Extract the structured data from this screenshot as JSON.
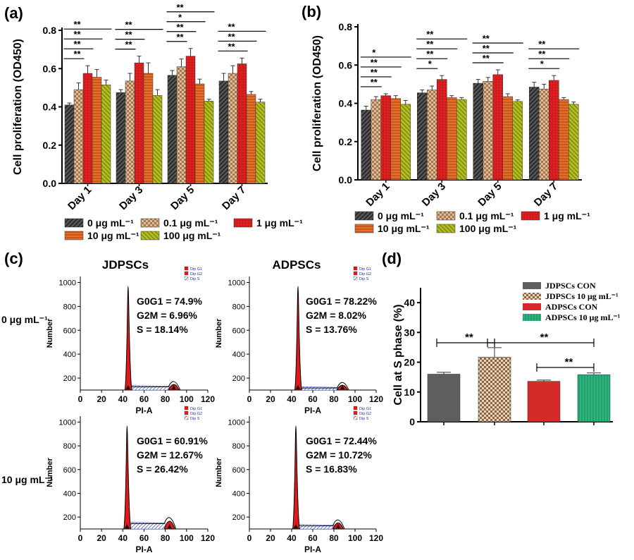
{
  "colors": {
    "c0": "#555555",
    "c01": "#e8b98c",
    "c1": "#d81e1e",
    "c10": "#e46f2b",
    "c100": "#b3bf1f",
    "adcon": "#d62a2a",
    "adtreat": "#2ab57d",
    "peak": "#e01a1a"
  },
  "legend_ab": [
    "0 μg mL⁻¹",
    "0.1 μg mL⁻¹",
    "1 μg mL⁻¹",
    "10 μg mL⁻¹",
    "100 μg mL⁻¹"
  ],
  "chart_data": [
    {
      "panel": "(a)",
      "type": "bar",
      "ylabel": "Cell proliferation (OD450)",
      "ylim": [
        0,
        0.8
      ],
      "yticks": [
        "0.0",
        "0.2",
        "0.4",
        "0.6",
        "0.8"
      ],
      "categories": [
        "Day 1",
        "Day 3",
        "Day 5",
        "Day 7"
      ],
      "series": [
        {
          "name": "0 μg mL⁻¹",
          "values": [
            0.41,
            0.475,
            0.565,
            0.535
          ],
          "err": [
            0.01,
            0.015,
            0.025,
            0.04
          ]
        },
        {
          "name": "0.1 μg mL⁻¹",
          "values": [
            0.49,
            0.535,
            0.61,
            0.575
          ],
          "err": [
            0.035,
            0.04,
            0.04,
            0.04
          ]
        },
        {
          "name": "1 μg mL⁻¹",
          "values": [
            0.575,
            0.63,
            0.665,
            0.625
          ],
          "err": [
            0.04,
            0.035,
            0.04,
            0.03
          ]
        },
        {
          "name": "10 μg mL⁻¹",
          "values": [
            0.555,
            0.575,
            0.52,
            0.465
          ],
          "err": [
            0.04,
            0.055,
            0.025,
            0.015
          ]
        },
        {
          "name": "100 μg mL⁻¹",
          "values": [
            0.515,
            0.46,
            0.43,
            0.425
          ],
          "err": [
            0.025,
            0.03,
            0.01,
            0.015
          ]
        }
      ],
      "significance": [
        [
          [
            "**",
            0,
            1
          ],
          [
            "**",
            0,
            2
          ],
          [
            "**",
            0,
            3
          ],
          [
            "**",
            0,
            4
          ]
        ],
        [
          [
            "**",
            0,
            1
          ],
          [
            "**",
            0,
            2
          ],
          [
            "**",
            0,
            4
          ]
        ],
        [
          [
            "**",
            0,
            1
          ],
          [
            "**",
            0,
            2
          ],
          [
            "*",
            0,
            3
          ],
          [
            "**",
            0,
            4
          ]
        ],
        [
          [
            "**",
            0,
            2
          ],
          [
            "**",
            0,
            3
          ],
          [
            "**",
            0,
            4
          ]
        ]
      ]
    },
    {
      "panel": "(b)",
      "type": "bar",
      "ylabel": "Cell proliferation (OD450)",
      "ylim": [
        0,
        0.8
      ],
      "yticks": [
        "0.0",
        "0.2",
        "0.4",
        "0.6",
        "0.8"
      ],
      "categories": [
        "Day 1",
        "Day 3",
        "Day 5",
        "Day 7"
      ],
      "series": [
        {
          "name": "0 μg mL⁻¹",
          "values": [
            0.365,
            0.455,
            0.505,
            0.485
          ],
          "err": [
            0.02,
            0.015,
            0.02,
            0.025
          ]
        },
        {
          "name": "0.1 μg mL⁻¹",
          "values": [
            0.42,
            0.47,
            0.515,
            0.475
          ],
          "err": [
            0.015,
            0.02,
            0.02,
            0.025
          ]
        },
        {
          "name": "1 μg mL⁻¹",
          "values": [
            0.44,
            0.525,
            0.55,
            0.52
          ],
          "err": [
            0.01,
            0.02,
            0.025,
            0.025
          ]
        },
        {
          "name": "10 μg mL⁻¹",
          "values": [
            0.425,
            0.43,
            0.435,
            0.42
          ],
          "err": [
            0.015,
            0.01,
            0.015,
            0.01
          ]
        },
        {
          "name": "100 μg mL⁻¹",
          "values": [
            0.395,
            0.42,
            0.41,
            0.395
          ],
          "err": [
            0.02,
            0.01,
            0.008,
            0.012
          ]
        }
      ],
      "significance": [
        [
          [
            "**",
            0,
            1
          ],
          [
            "**",
            0,
            2
          ],
          [
            "**",
            0,
            3
          ],
          [
            "*",
            0,
            4
          ]
        ],
        [
          [
            "*",
            0,
            1
          ],
          [
            "**",
            0,
            2
          ],
          [
            "**",
            0,
            3
          ],
          [
            "**",
            0,
            4
          ]
        ],
        [
          [
            "**",
            0,
            2
          ],
          [
            "**",
            0,
            3
          ],
          [
            "**",
            0,
            4
          ]
        ],
        [
          [
            "*",
            0,
            2
          ],
          [
            "**",
            0,
            3
          ],
          [
            "**",
            0,
            4
          ]
        ]
      ]
    },
    {
      "panel": "(c)",
      "type": "area",
      "column_titles": [
        "JDPSCs",
        "ADPSCs"
      ],
      "row_labels": [
        "0 μg mL⁻¹",
        "10 μg mL⁻¹"
      ],
      "xlabel": "PI-A",
      "ylabel": "Number",
      "xticks": [
        "0",
        "20",
        "40",
        "60",
        "80",
        "100",
        "120"
      ],
      "yticks": [
        "200",
        "400",
        "600",
        "800",
        "1000"
      ],
      "mini_legend": [
        "Dip G1",
        "Dip G2",
        "Dip S"
      ],
      "histograms": [
        {
          "row": 0,
          "col": 0,
          "lines": [
            "G0G1 = 74.9%",
            "G2M = 6.96%",
            "S = 18.14%"
          ]
        },
        {
          "row": 0,
          "col": 1,
          "lines": [
            "G0G1 = 78.22%",
            "G2M = 8.02%",
            "S = 13.76%"
          ]
        },
        {
          "row": 1,
          "col": 0,
          "lines": [
            "G0G1 = 60.91%",
            "G2M = 12.67%",
            "S = 26.42%"
          ]
        },
        {
          "row": 1,
          "col": 1,
          "lines": [
            "G0G1 = 72.44%",
            "G2M = 10.72%",
            "S = 16.83%"
          ]
        }
      ]
    },
    {
      "panel": "(d)",
      "type": "bar",
      "ylabel": "Cell at  S phase (%)",
      "ylim": [
        0,
        45
      ],
      "yticks": [
        "0",
        "10",
        "20",
        "30",
        "40"
      ],
      "series": [
        {
          "name": "JDPSCs CON",
          "values": [
            16.0
          ],
          "err": [
            0.6
          ]
        },
        {
          "name": "JDPSCs 10 μg mL⁻¹",
          "values": [
            21.7
          ],
          "err": [
            3.2
          ]
        },
        {
          "name": "ADPSCs CON",
          "values": [
            13.6
          ],
          "err": [
            0.4
          ]
        },
        {
          "name": "ADPSCs 10 μg mL⁻¹",
          "values": [
            15.8
          ],
          "err": [
            0.6
          ]
        }
      ],
      "significance": [
        [
          "**",
          0,
          1
        ],
        [
          "**",
          1,
          3
        ],
        [
          "**",
          2,
          3
        ]
      ]
    }
  ]
}
